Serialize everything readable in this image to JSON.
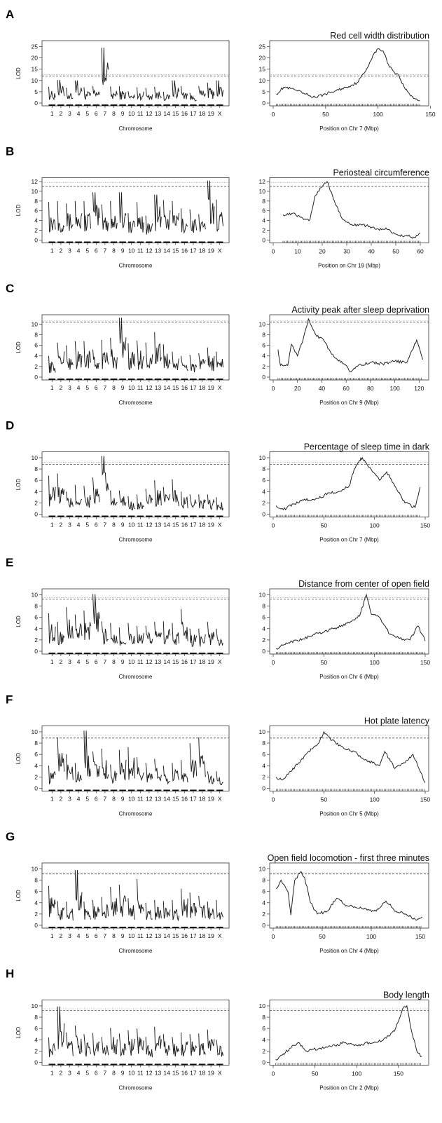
{
  "chart_data": [
    {
      "panel": "A",
      "type": "line",
      "title": "Red cell width distribution",
      "left": {
        "xlabel": "Chromosome",
        "ylabel": "LOD",
        "ylim": [
          0,
          27
        ],
        "yticks": [
          0,
          5,
          10,
          15,
          20,
          25
        ],
        "thresholds": [
          12.0,
          12.6
        ],
        "chrom_peaks": [
          7.2,
          10.2,
          6.8,
          10,
          7,
          7.5,
          24.5,
          7.3,
          7.5,
          5.2,
          7,
          6.7,
          7.2,
          5,
          10,
          7.5,
          4.5,
          7.5,
          9,
          10
        ]
      },
      "right": {
        "xlabel": "Position on Chr 7 (Mbp)",
        "ylabel": "",
        "xlim": [
          0,
          145
        ],
        "xticks": [
          0,
          50,
          100,
          150
        ],
        "ylim": [
          0,
          27
        ],
        "yticks": [
          0,
          5,
          10,
          15,
          20,
          25
        ],
        "thresholds": [
          12.0,
          12.6
        ],
        "points": [
          [
            3,
            4
          ],
          [
            10,
            7
          ],
          [
            20,
            6
          ],
          [
            30,
            4
          ],
          [
            40,
            2.5
          ],
          [
            50,
            4
          ],
          [
            60,
            5.5
          ],
          [
            70,
            7
          ],
          [
            80,
            9
          ],
          [
            88,
            14
          ],
          [
            95,
            21
          ],
          [
            100,
            24
          ],
          [
            105,
            23
          ],
          [
            110,
            17
          ],
          [
            115,
            14
          ],
          [
            120,
            12
          ],
          [
            125,
            7
          ],
          [
            130,
            4
          ],
          [
            135,
            2
          ],
          [
            140,
            1
          ]
        ]
      }
    },
    {
      "panel": "B",
      "type": "line",
      "title": "Periosteal circumference",
      "left": {
        "xlabel": "Chromosome",
        "ylabel": "LOD",
        "ylim": [
          0,
          12.5
        ],
        "yticks": [
          0,
          2,
          4,
          6,
          8,
          10,
          12
        ],
        "thresholds": [
          11.0,
          11.8
        ],
        "chrom_peaks": [
          7.8,
          8,
          7.5,
          8,
          8,
          9.8,
          7.3,
          8,
          9.8,
          5.5,
          7.8,
          5,
          9.3,
          8.2,
          8,
          6.5,
          6.3,
          5.3,
          12.2,
          8.3
        ]
      },
      "right": {
        "xlabel": "Position on Chr 19 (Mbp)",
        "ylabel": "",
        "xlim": [
          0,
          62
        ],
        "xticks": [
          0,
          10,
          20,
          30,
          40,
          50,
          60
        ],
        "ylim": [
          0,
          12.5
        ],
        "yticks": [
          0,
          2,
          4,
          6,
          8,
          10,
          12
        ],
        "thresholds": [
          11.0,
          11.8
        ],
        "points": [
          [
            4,
            5.2
          ],
          [
            8,
            5.5
          ],
          [
            12,
            4.5
          ],
          [
            15,
            4.2
          ],
          [
            17,
            9
          ],
          [
            20,
            11
          ],
          [
            22,
            12
          ],
          [
            25,
            8
          ],
          [
            28,
            4.5
          ],
          [
            32,
            3.2
          ],
          [
            38,
            3
          ],
          [
            42,
            2.2
          ],
          [
            46,
            2.5
          ],
          [
            50,
            1.2
          ],
          [
            55,
            0.8
          ],
          [
            58,
            0.5
          ],
          [
            60,
            1.5
          ]
        ]
      }
    },
    {
      "panel": "C",
      "type": "line",
      "title": "Activity peak after sleep deprivation",
      "left": {
        "xlabel": "Chromosome",
        "ylabel": "LOD",
        "ylim": [
          0,
          11.5
        ],
        "yticks": [
          0,
          2,
          4,
          6,
          8,
          10
        ],
        "thresholds": [
          10.4,
          10.6
        ],
        "chrom_peaks": [
          4,
          6.5,
          6,
          6.8,
          6.8,
          5.2,
          7,
          7.4,
          11.2,
          6.4,
          6.9,
          6.5,
          8.5,
          6.2,
          4.8,
          4,
          4.2,
          4.5,
          5.6,
          4.8
        ]
      },
      "right": {
        "xlabel": "Position on Chr 9 (Mbp)",
        "ylabel": "",
        "xlim": [
          0,
          125
        ],
        "xticks": [
          0,
          20,
          40,
          60,
          80,
          100,
          120
        ],
        "ylim": [
          0,
          11.5
        ],
        "yticks": [
          0,
          2,
          4,
          6,
          8,
          10
        ],
        "thresholds": [
          10.4,
          10.6
        ],
        "points": [
          [
            4,
            5.2
          ],
          [
            6,
            2.2
          ],
          [
            12,
            2.2
          ],
          [
            15,
            6.2
          ],
          [
            20,
            4
          ],
          [
            25,
            7.5
          ],
          [
            29,
            11
          ],
          [
            35,
            8
          ],
          [
            42,
            6.8
          ],
          [
            47,
            4.8
          ],
          [
            52,
            3.5
          ],
          [
            58,
            2.5
          ],
          [
            64,
            1
          ],
          [
            70,
            2.2
          ],
          [
            80,
            2.8
          ],
          [
            90,
            2.5
          ],
          [
            100,
            3
          ],
          [
            110,
            2.8
          ],
          [
            118,
            7
          ],
          [
            123,
            3.3
          ]
        ]
      }
    },
    {
      "panel": "D",
      "type": "line",
      "title": "Percentage of sleep time in dark",
      "left": {
        "xlabel": "Chromosome",
        "ylabel": "LOD",
        "ylim": [
          0,
          10.8
        ],
        "yticks": [
          0,
          2,
          4,
          6,
          8,
          10
        ],
        "thresholds": [
          8.8,
          9.2
        ],
        "chrom_peaks": [
          6.8,
          7.2,
          4,
          5.2,
          5,
          6.5,
          10.3,
          4.2,
          4.2,
          3.2,
          3.5,
          4.5,
          6,
          4.8,
          6.2,
          4,
          3.5,
          3.5,
          3.5,
          3
        ]
      },
      "right": {
        "xlabel": "Position on Chr 7 (Mbp)",
        "ylabel": "",
        "xlim": [
          0,
          150
        ],
        "xticks": [
          0,
          50,
          100,
          150
        ],
        "ylim": [
          0,
          10.8
        ],
        "yticks": [
          0,
          2,
          4,
          6,
          8,
          10
        ],
        "thresholds": [
          8.8,
          9.2
        ],
        "points": [
          [
            3,
            1.5
          ],
          [
            10,
            0.8
          ],
          [
            20,
            1.8
          ],
          [
            30,
            2.5
          ],
          [
            45,
            2.8
          ],
          [
            55,
            3.8
          ],
          [
            65,
            4
          ],
          [
            75,
            5
          ],
          [
            80,
            8
          ],
          [
            85,
            9.5
          ],
          [
            88,
            10
          ],
          [
            92,
            9
          ],
          [
            98,
            7.5
          ],
          [
            105,
            6
          ],
          [
            112,
            7.5
          ],
          [
            120,
            5
          ],
          [
            130,
            2
          ],
          [
            140,
            1.2
          ],
          [
            145,
            4.8
          ]
        ]
      }
    },
    {
      "panel": "E",
      "type": "line",
      "title": "Distance from center of open field",
      "left": {
        "xlabel": "Chromosome",
        "ylabel": "LOD",
        "ylim": [
          0,
          10.8
        ],
        "yticks": [
          0,
          2,
          4,
          6,
          8,
          10
        ],
        "thresholds": [
          9.2,
          9.5
        ],
        "chrom_peaks": [
          6.7,
          5.2,
          7.8,
          6.5,
          7.2,
          10.1,
          5.3,
          5,
          4.2,
          5,
          4.5,
          4.5,
          5.2,
          5.3,
          5,
          7.5,
          4,
          4,
          5.2,
          4
        ]
      },
      "right": {
        "xlabel": "Position on Chr 6 (Mbp)",
        "ylabel": "",
        "xlim": [
          0,
          150
        ],
        "xticks": [
          0,
          50,
          100,
          150
        ],
        "ylim": [
          0,
          10.8
        ],
        "yticks": [
          0,
          2,
          4,
          6,
          8,
          10
        ],
        "thresholds": [
          9.2,
          9.5
        ],
        "points": [
          [
            3,
            0.5
          ],
          [
            15,
            1.5
          ],
          [
            30,
            2.2
          ],
          [
            45,
            3.2
          ],
          [
            60,
            4
          ],
          [
            75,
            5
          ],
          [
            85,
            6.2
          ],
          [
            92,
            10
          ],
          [
            97,
            6.5
          ],
          [
            105,
            6
          ],
          [
            115,
            3
          ],
          [
            125,
            2.3
          ],
          [
            135,
            2
          ],
          [
            143,
            4.5
          ],
          [
            150,
            1.8
          ]
        ]
      }
    },
    {
      "panel": "F",
      "type": "line",
      "title": "Hot plate latency",
      "left": {
        "xlabel": "Chromosome",
        "ylabel": "LOD",
        "ylim": [
          0,
          10.8
        ],
        "yticks": [
          0,
          2,
          4,
          6,
          8,
          10
        ],
        "thresholds": [
          8.9,
          9.4
        ],
        "chrom_peaks": [
          4,
          9,
          6,
          4.5,
          10.2,
          6.5,
          7,
          4.2,
          6.8,
          7.3,
          5.5,
          4.5,
          5.2,
          4,
          4.5,
          5,
          8,
          9,
          3,
          3
        ]
      },
      "right": {
        "xlabel": "Position on Chr 5 (Mbp)",
        "ylabel": "",
        "xlim": [
          0,
          150
        ],
        "xticks": [
          0,
          50,
          100,
          150
        ],
        "ylim": [
          0,
          10.8
        ],
        "yticks": [
          0,
          2,
          4,
          6,
          8,
          10
        ],
        "thresholds": [
          8.9,
          9.4
        ],
        "points": [
          [
            3,
            2
          ],
          [
            8,
            1.5
          ],
          [
            15,
            2.5
          ],
          [
            25,
            4.5
          ],
          [
            35,
            6.5
          ],
          [
            45,
            8
          ],
          [
            50,
            10
          ],
          [
            58,
            8.5
          ],
          [
            70,
            7
          ],
          [
            80,
            6.5
          ],
          [
            90,
            5
          ],
          [
            98,
            4.5
          ],
          [
            105,
            4
          ],
          [
            110,
            6.5
          ],
          [
            120,
            3.5
          ],
          [
            130,
            4.5
          ],
          [
            138,
            6
          ],
          [
            145,
            3
          ],
          [
            150,
            1
          ]
        ]
      }
    },
    {
      "panel": "G",
      "type": "line",
      "title": "Open field locomotion - first three minutes",
      "left": {
        "xlabel": "Chromosome",
        "ylabel": "LOD",
        "ylim": [
          0,
          10.8
        ],
        "yticks": [
          0,
          2,
          4,
          6,
          8,
          10
        ],
        "thresholds": [
          9.1,
          9.3
        ],
        "chrom_peaks": [
          7,
          4.3,
          4.2,
          9.8,
          4.2,
          4.5,
          5,
          6.8,
          7.2,
          4.8,
          8.2,
          4,
          4.5,
          4.3,
          4.5,
          6.5,
          5.8,
          5.2,
          4.2,
          4.5
        ]
      },
      "right": {
        "xlabel": "Position on Chr 4 (Mbp)",
        "ylabel": "",
        "xlim": [
          0,
          155
        ],
        "xticks": [
          0,
          50,
          100,
          150
        ],
        "ylim": [
          0,
          10.8
        ],
        "yticks": [
          0,
          2,
          4,
          6,
          8,
          10
        ],
        "thresholds": [
          9.1,
          9.3
        ],
        "points": [
          [
            3,
            6.5
          ],
          [
            8,
            8
          ],
          [
            15,
            6
          ],
          [
            18,
            1.8
          ],
          [
            22,
            8
          ],
          [
            28,
            9.5
          ],
          [
            32,
            8.5
          ],
          [
            38,
            4
          ],
          [
            45,
            2
          ],
          [
            55,
            2.5
          ],
          [
            65,
            4.8
          ],
          [
            75,
            3.5
          ],
          [
            90,
            3
          ],
          [
            105,
            2.5
          ],
          [
            115,
            4.3
          ],
          [
            125,
            2.5
          ],
          [
            135,
            2
          ],
          [
            145,
            1
          ],
          [
            152,
            1.5
          ]
        ]
      }
    },
    {
      "panel": "H",
      "type": "line",
      "title": "Body length",
      "left": {
        "xlabel": "Chromosome",
        "ylabel": "LOD",
        "ylim": [
          0,
          10.8
        ],
        "yticks": [
          0,
          2,
          4,
          6,
          8,
          10
        ],
        "thresholds": [
          9.2,
          9.5
        ],
        "chrom_peaks": [
          4.4,
          9.9,
          5.3,
          6.5,
          5,
          5.2,
          4.5,
          6.1,
          5.1,
          5.7,
          6,
          4.5,
          6.3,
          5,
          4.5,
          5.3,
          5,
          5.1,
          5.8,
          4
        ]
      },
      "right": {
        "xlabel": "Position on Chr 2 (Mbp)",
        "ylabel": "",
        "xlim": [
          0,
          182
        ],
        "xticks": [
          0,
          50,
          100,
          150
        ],
        "ylim": [
          0,
          10.8
        ],
        "yticks": [
          0,
          2,
          4,
          6,
          8,
          10
        ],
        "thresholds": [
          9.2,
          9.5
        ],
        "points": [
          [
            3,
            0.5
          ],
          [
            12,
            1.5
          ],
          [
            20,
            2.5
          ],
          [
            30,
            3.5
          ],
          [
            40,
            2
          ],
          [
            55,
            2.5
          ],
          [
            70,
            2.8
          ],
          [
            85,
            3.5
          ],
          [
            100,
            3
          ],
          [
            115,
            3.5
          ],
          [
            130,
            3.8
          ],
          [
            145,
            5.5
          ],
          [
            155,
            9.5
          ],
          [
            160,
            10
          ],
          [
            165,
            6
          ],
          [
            172,
            2
          ],
          [
            178,
            1
          ]
        ]
      }
    }
  ],
  "chromosome_labels": [
    "1",
    "2",
    "3",
    "4",
    "5",
    "6",
    "7",
    "8",
    "9",
    "10",
    "11",
    "12",
    "13",
    "14",
    "15",
    "16",
    "17",
    "18",
    "19",
    "X"
  ]
}
